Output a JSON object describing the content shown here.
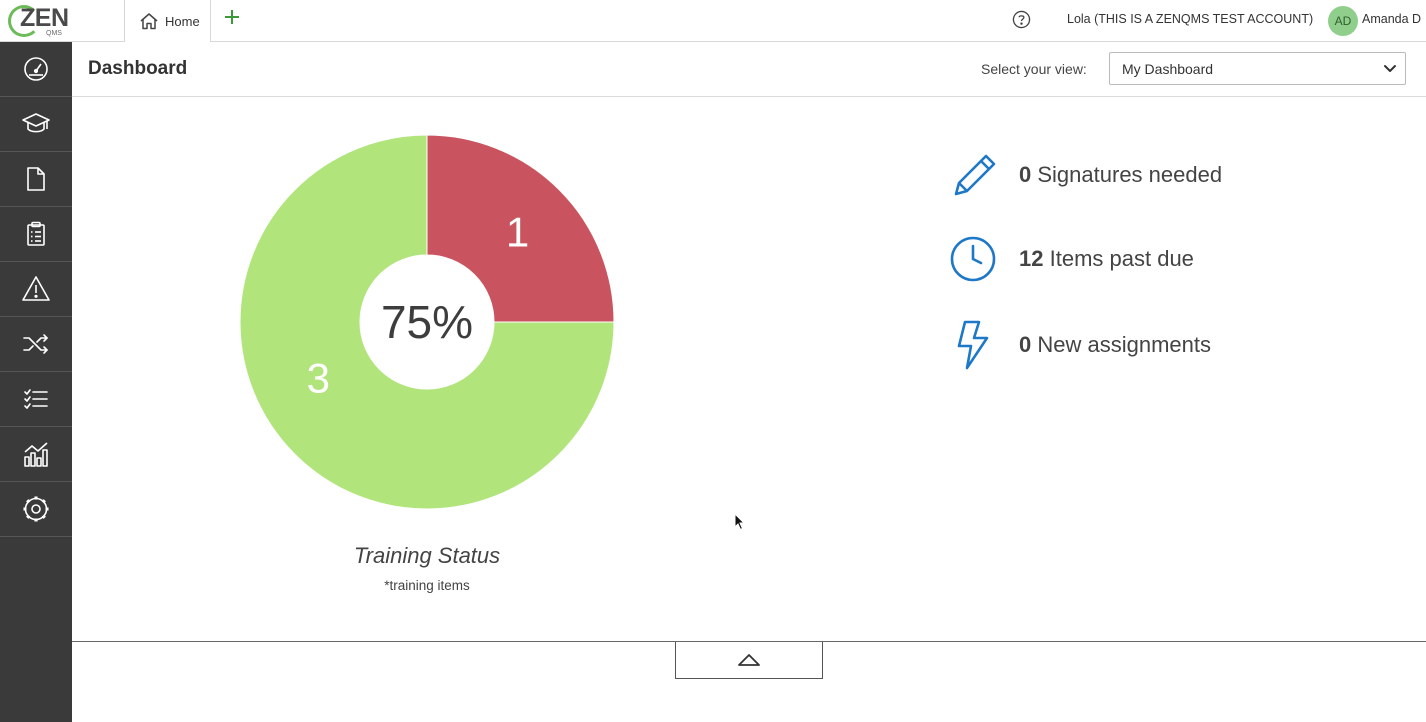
{
  "app": {
    "logo_word": "ZEN",
    "logo_sub": "QMS",
    "brand_color": "#6dbb5a"
  },
  "tabs": [
    {
      "label": "Home",
      "icon": "home-icon",
      "active": true
    }
  ],
  "topbar": {
    "help_icon": "help-circle-icon",
    "account_label": "Lola (THIS IS A ZENQMS TEST ACCOUNT)",
    "avatar_initials": "AD",
    "user_name": "Amanda D"
  },
  "sidebar": {
    "items": [
      {
        "icon": "dashboard-gauge-icon"
      },
      {
        "icon": "training-cap-icon"
      },
      {
        "icon": "document-icon"
      },
      {
        "icon": "clipboard-checklist-icon"
      },
      {
        "icon": "warning-icon"
      },
      {
        "icon": "shuffle-icon"
      },
      {
        "icon": "checklist-icon"
      },
      {
        "icon": "analytics-icon"
      },
      {
        "icon": "settings-gear-icon"
      }
    ]
  },
  "page": {
    "title": "Dashboard",
    "view_label": "Select your view:",
    "view_selected": "My Dashboard"
  },
  "chart_data": {
    "type": "pie",
    "subtype": "donut",
    "title": "Training Status",
    "subtitle": "*training items",
    "center_label": "75%",
    "slices": [
      {
        "value": 1,
        "label": "1",
        "color": "#c9545f"
      },
      {
        "value": 3,
        "label": "3",
        "color": "#b1e57c"
      }
    ]
  },
  "stats": [
    {
      "icon": "pencil-icon",
      "count": "0",
      "label": "Signatures needed"
    },
    {
      "icon": "clock-icon",
      "count": "12",
      "label": "Items past due"
    },
    {
      "icon": "lightning-icon",
      "count": "0",
      "label": "New assignments"
    }
  ],
  "colors": {
    "sidebar_bg": "#3a3a3a",
    "accent_blue": "#1e78c8",
    "avatar_bg": "#8fcf8b"
  }
}
